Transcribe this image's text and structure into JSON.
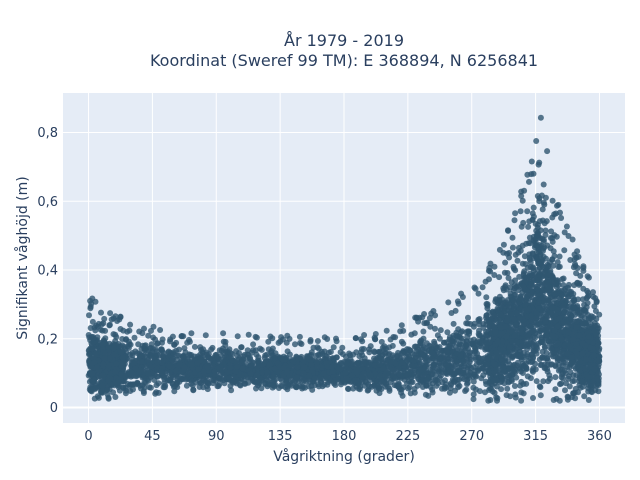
{
  "chart_data": {
    "type": "scatter",
    "title_line1": "År 1979 - 2019",
    "title_line2": "Koordinat (Sweref 99 TM): E 368894, N 6256841",
    "xlabel": "Vågriktning (grader)",
    "ylabel": "Signifikant våghöjd (m)",
    "xlim": [
      -18,
      378
    ],
    "ylim": [
      -0.045,
      0.915
    ],
    "xticks": [
      {
        "value": 0,
        "label": "0"
      },
      {
        "value": 45,
        "label": "45"
      },
      {
        "value": 90,
        "label": "90"
      },
      {
        "value": 135,
        "label": "135"
      },
      {
        "value": 180,
        "label": "180"
      },
      {
        "value": 225,
        "label": "225"
      },
      {
        "value": 270,
        "label": "270"
      },
      {
        "value": 315,
        "label": "315"
      },
      {
        "value": 360,
        "label": "360"
      }
    ],
    "yticks": [
      {
        "value": 0,
        "label": "0"
      },
      {
        "value": 0.2,
        "label": "0,2"
      },
      {
        "value": 0.4,
        "label": "0,4"
      },
      {
        "value": 0.6,
        "label": "0,6"
      },
      {
        "value": 0.8,
        "label": "0,8"
      }
    ],
    "grid": true,
    "marker_color": "#2f5670",
    "plot_bg": "#e5ecf6",
    "envelope": {
      "x": [
        0,
        5,
        10,
        20,
        30,
        45,
        60,
        90,
        120,
        150,
        180,
        200,
        225,
        250,
        270,
        285,
        300,
        310,
        315,
        318,
        322,
        330,
        340,
        350,
        360
      ],
      "y_max": [
        0.33,
        0.31,
        0.29,
        0.27,
        0.25,
        0.24,
        0.22,
        0.22,
        0.21,
        0.21,
        0.2,
        0.22,
        0.26,
        0.31,
        0.35,
        0.43,
        0.58,
        0.7,
        0.82,
        0.87,
        0.78,
        0.62,
        0.5,
        0.4,
        0.36
      ],
      "y_min": [
        0.02,
        0.02,
        0.02,
        0.03,
        0.03,
        0.04,
        0.04,
        0.05,
        0.05,
        0.05,
        0.05,
        0.04,
        0.03,
        0.03,
        0.02,
        0.02,
        0.02,
        0.02,
        0.02,
        0.02,
        0.02,
        0.02,
        0.02,
        0.02,
        0.02
      ]
    }
  }
}
